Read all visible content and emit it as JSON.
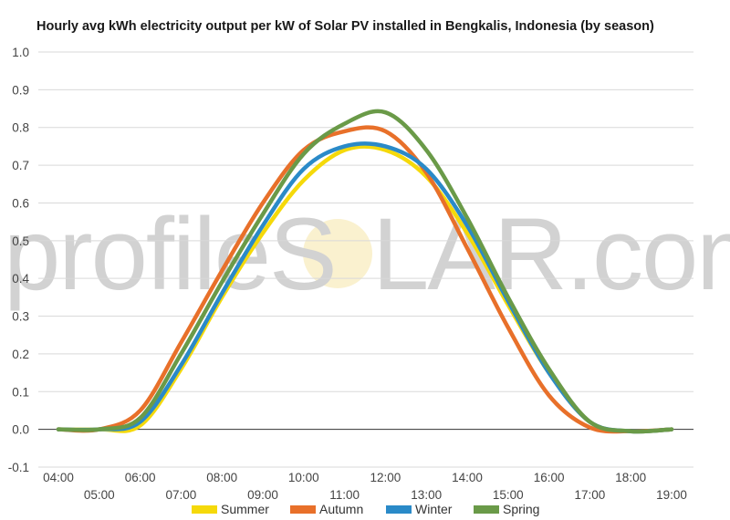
{
  "chart_data": {
    "type": "line",
    "title": "Hourly avg kWh electricity output per kW of Solar PV installed in Bengkalis, Indonesia (by season)",
    "watermark": [
      "profileS",
      "LAR.com"
    ],
    "xlabel": "",
    "ylabel": "",
    "x": [
      "04:00",
      "05:00",
      "06:00",
      "07:00",
      "08:00",
      "09:00",
      "10:00",
      "11:00",
      "12:00",
      "13:00",
      "14:00",
      "15:00",
      "16:00",
      "17:00",
      "18:00",
      "19:00"
    ],
    "ylim": [
      -0.1,
      1.0
    ],
    "yticks": [
      "1.0",
      "0.9",
      "0.8",
      "0.7",
      "0.6",
      "0.5",
      "0.4",
      "0.3",
      "0.2",
      "0.1",
      "0.0",
      "-0.1"
    ],
    "grid": true,
    "legend_position": "bottom",
    "series": [
      {
        "name": "Summer",
        "color": "#f5d90a",
        "values": [
          0.0,
          0.0,
          0.01,
          0.16,
          0.35,
          0.52,
          0.66,
          0.74,
          0.74,
          0.67,
          0.52,
          0.33,
          0.15,
          0.02,
          -0.005,
          0.0
        ]
      },
      {
        "name": "Autumn",
        "color": "#e8702a",
        "values": [
          0.0,
          0.0,
          0.05,
          0.23,
          0.42,
          0.6,
          0.74,
          0.79,
          0.79,
          0.68,
          0.48,
          0.27,
          0.09,
          0.005,
          -0.005,
          0.0
        ]
      },
      {
        "name": "Winter",
        "color": "#2a8ac8",
        "values": [
          0.0,
          0.0,
          0.02,
          0.17,
          0.36,
          0.54,
          0.69,
          0.75,
          0.75,
          0.69,
          0.54,
          0.34,
          0.15,
          0.02,
          -0.005,
          0.0
        ]
      },
      {
        "name": "Spring",
        "color": "#6a9a48",
        "values": [
          0.0,
          0.0,
          0.03,
          0.2,
          0.39,
          0.57,
          0.73,
          0.81,
          0.84,
          0.74,
          0.56,
          0.35,
          0.16,
          0.02,
          -0.005,
          0.0
        ]
      }
    ]
  }
}
